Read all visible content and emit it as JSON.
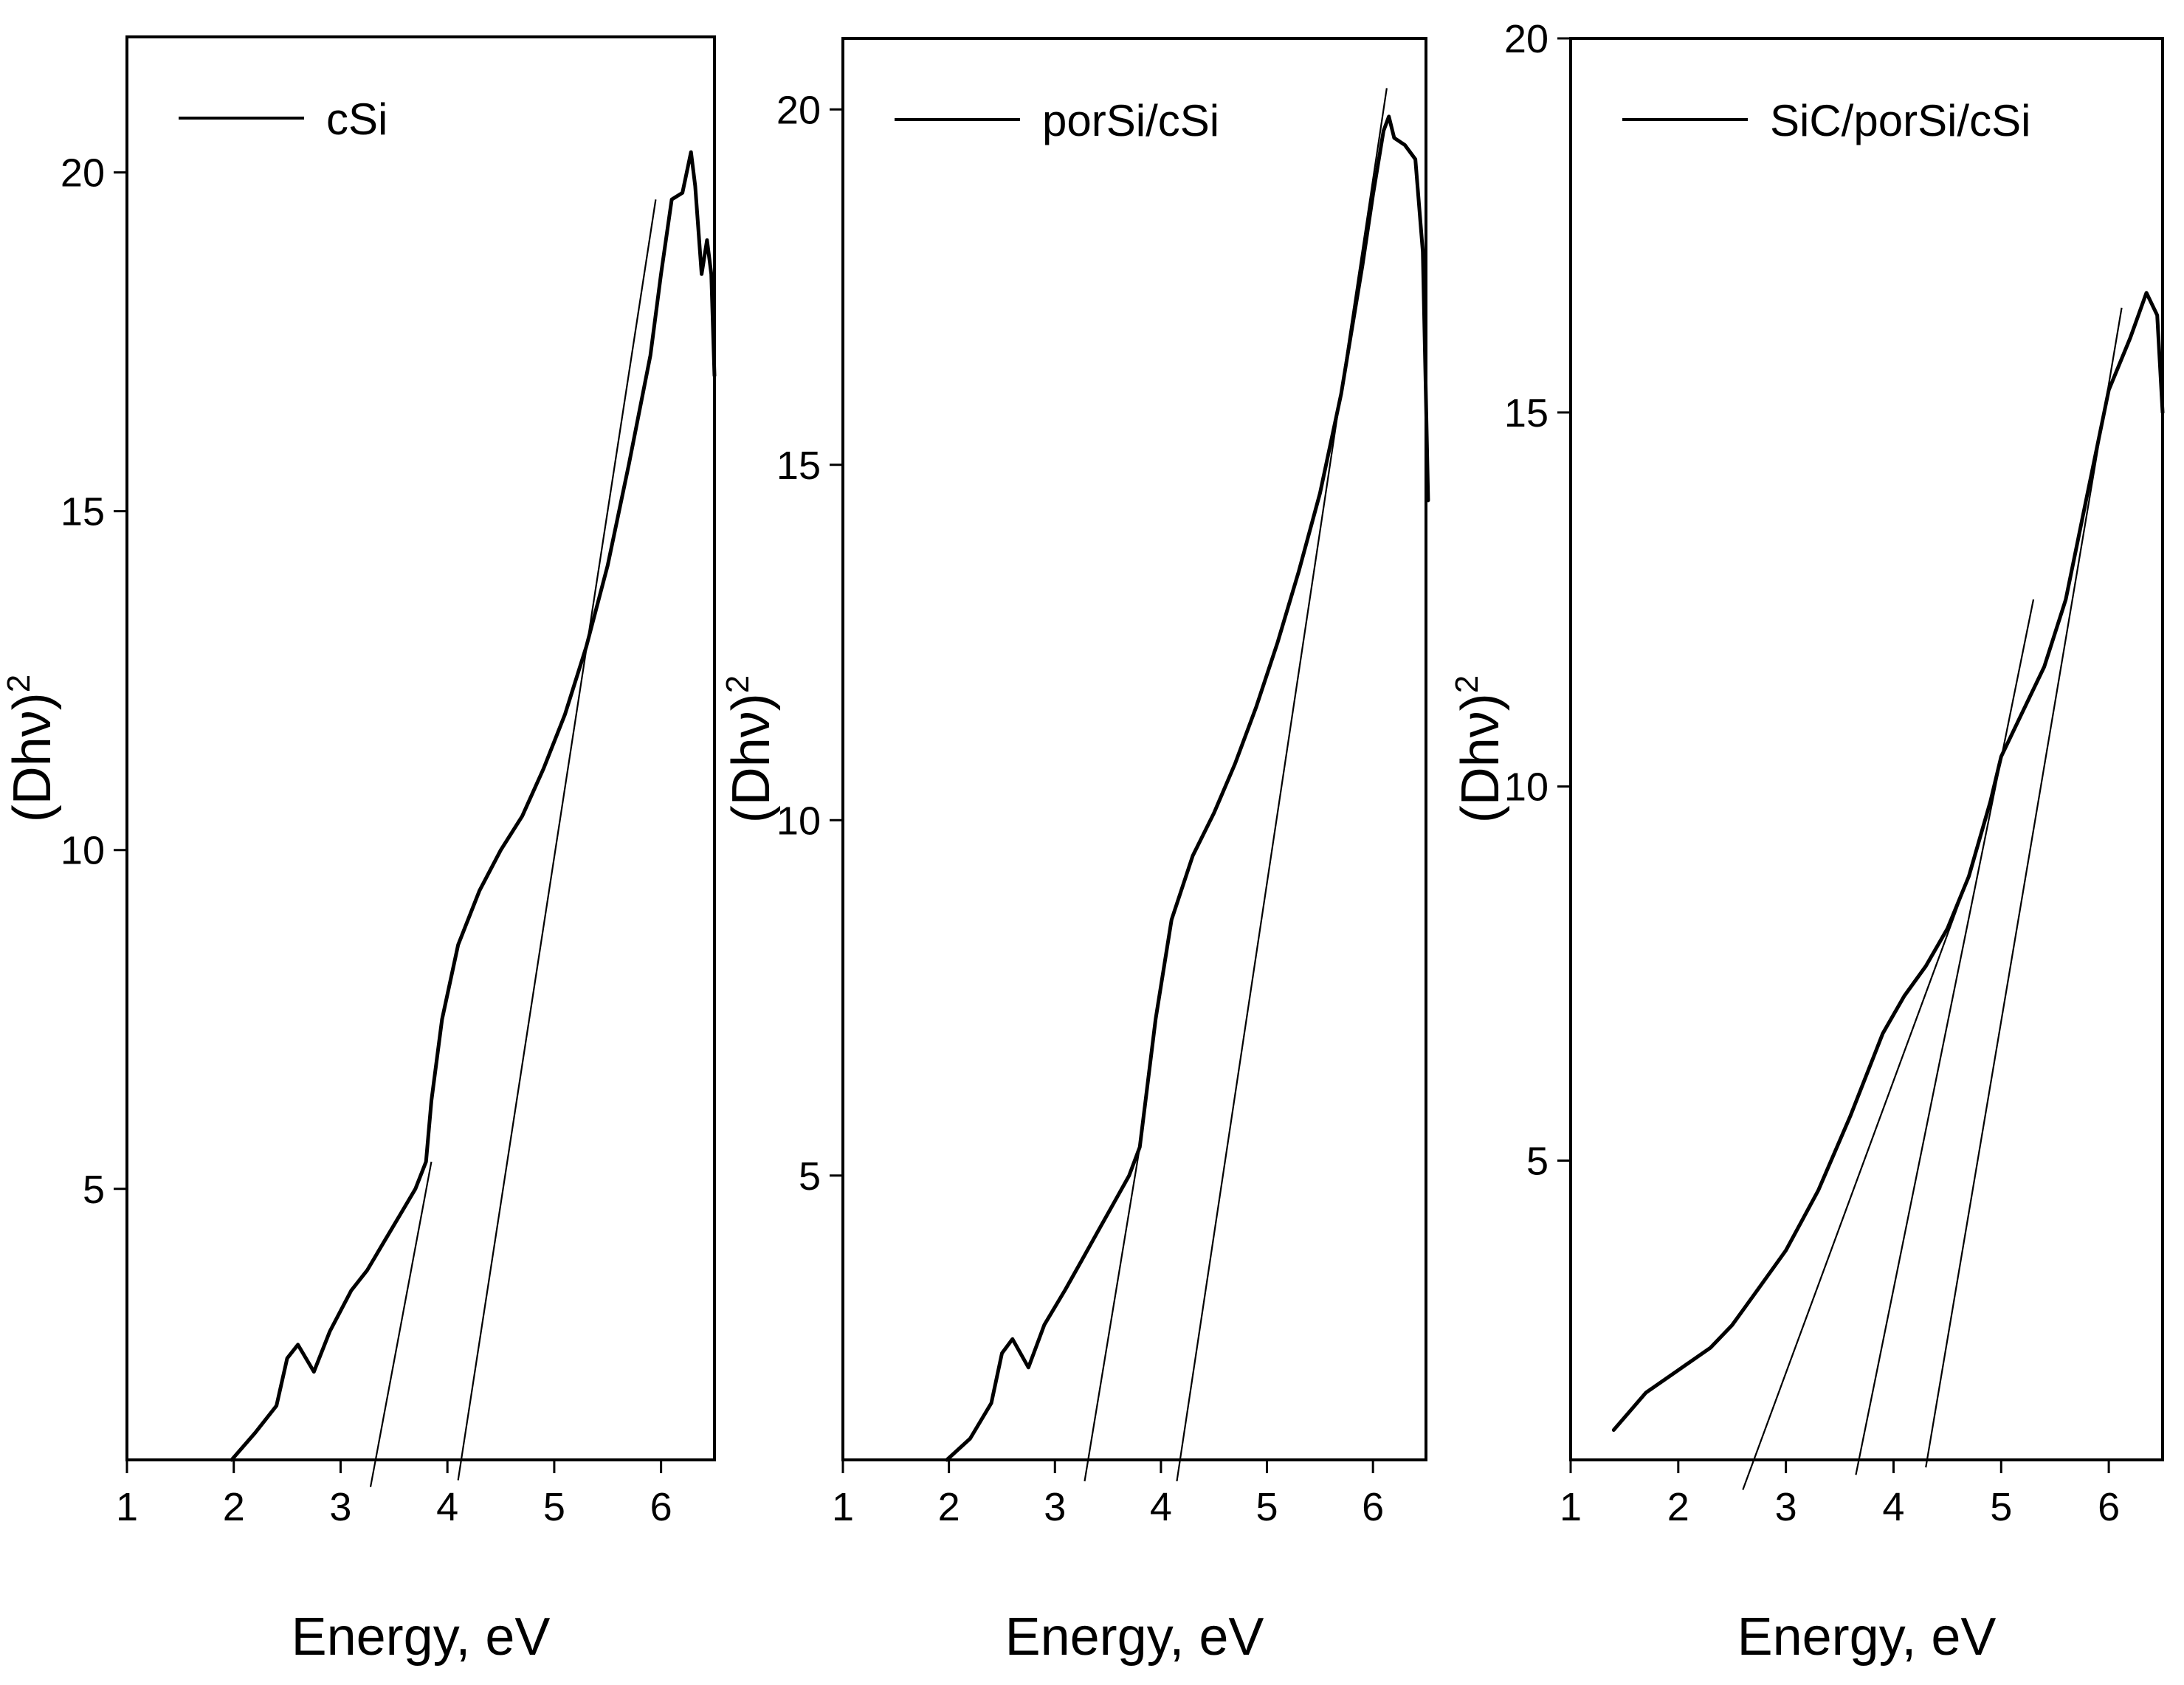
{
  "figure": {
    "colors": {
      "line": "#000000",
      "background": "#ffffff"
    }
  },
  "chart_data": [
    {
      "type": "line",
      "title": "",
      "xlabel": "Energy, eV",
      "ylabel": "(Dhν)",
      "ylabel_superscript": "2",
      "xlim": [
        1,
        6.5
      ],
      "ylim": [
        1,
        22
      ],
      "xticks": [
        "1",
        "2",
        "3",
        "4",
        "5",
        "6"
      ],
      "yticks": [
        "5",
        "10",
        "15",
        "20"
      ],
      "legend": {
        "position": "top-left"
      },
      "series": [
        {
          "name": "cSi",
          "x": [
            1.98,
            2.2,
            2.4,
            2.5,
            2.6,
            2.75,
            2.9,
            3.1,
            3.25,
            3.4,
            3.55,
            3.7,
            3.8,
            3.85,
            3.95,
            4.1,
            4.3,
            4.5,
            4.7,
            4.9,
            5.1,
            5.3,
            5.5,
            5.7,
            5.9,
            6.0,
            6.1,
            6.2,
            6.28,
            6.32,
            6.38,
            6.43,
            6.47,
            6.5
          ],
          "y": [
            1.0,
            1.4,
            1.8,
            2.5,
            2.7,
            2.3,
            2.9,
            3.5,
            3.8,
            4.2,
            4.6,
            5.0,
            5.4,
            6.3,
            7.5,
            8.6,
            9.4,
            10.0,
            10.5,
            11.2,
            12.0,
            13.0,
            14.2,
            15.7,
            17.3,
            18.5,
            19.6,
            19.7,
            20.3,
            19.8,
            18.5,
            19.0,
            18.5,
            17.0
          ]
        }
      ],
      "fit_lines": [
        {
          "x": [
            3.28,
            3.85
          ],
          "y": [
            0.6,
            5.4
          ]
        },
        {
          "x": [
            4.1,
            5.95
          ],
          "y": [
            0.7,
            19.6
          ]
        }
      ]
    },
    {
      "type": "line",
      "title": "",
      "xlabel": "Energy, eV",
      "ylabel": "(Dhν)",
      "ylabel_superscript": "2",
      "xlim": [
        1,
        6.5
      ],
      "ylim": [
        1,
        21
      ],
      "xticks": [
        "1",
        "2",
        "3",
        "4",
        "5",
        "6"
      ],
      "yticks": [
        "5",
        "10",
        "15",
        "20"
      ],
      "legend": {
        "position": "top-left"
      },
      "series": [
        {
          "name": "porSi/cSi",
          "x": [
            1.98,
            2.2,
            2.4,
            2.5,
            2.6,
            2.75,
            2.9,
            3.1,
            3.25,
            3.4,
            3.55,
            3.7,
            3.8,
            3.85,
            3.95,
            4.1,
            4.3,
            4.5,
            4.7,
            4.9,
            5.1,
            5.3,
            5.5,
            5.7,
            5.9,
            6.0,
            6.1,
            6.15,
            6.2,
            6.3,
            6.4,
            6.47,
            6.52
          ],
          "y": [
            1.0,
            1.3,
            1.8,
            2.5,
            2.7,
            2.3,
            2.9,
            3.4,
            3.8,
            4.2,
            4.6,
            5.0,
            5.4,
            6.0,
            7.2,
            8.6,
            9.5,
            10.1,
            10.8,
            11.6,
            12.5,
            13.5,
            14.6,
            16.0,
            17.8,
            18.8,
            19.7,
            19.9,
            19.6,
            19.5,
            19.3,
            18.0,
            14.5
          ]
        }
      ],
      "fit_lines": [
        {
          "x": [
            3.28,
            3.8
          ],
          "y": [
            0.7,
            5.4
          ]
        },
        {
          "x": [
            4.15,
            6.13
          ],
          "y": [
            0.7,
            20.3
          ]
        }
      ]
    },
    {
      "type": "line",
      "title": "",
      "xlabel": "Energy, eV",
      "ylabel": "(Dhν)",
      "ylabel_superscript": "2",
      "xlim": [
        1,
        6.5
      ],
      "ylim": [
        1,
        20
      ],
      "xticks": [
        "1",
        "2",
        "3",
        "4",
        "5",
        "6"
      ],
      "yticks": [
        "5",
        "10",
        "15",
        "20"
      ],
      "legend": {
        "position": "top-left"
      },
      "series": [
        {
          "name": "SiC/porSi/cSi",
          "x": [
            1.4,
            1.7,
            2.0,
            2.3,
            2.5,
            2.6,
            2.75,
            3.0,
            3.3,
            3.6,
            3.9,
            4.1,
            4.3,
            4.5,
            4.7,
            4.9,
            5.0,
            5.2,
            5.4,
            5.6,
            5.8,
            6.0,
            6.2,
            6.35,
            6.45,
            6.5
          ],
          "y": [
            1.4,
            1.9,
            2.2,
            2.5,
            2.8,
            3.0,
            3.3,
            3.8,
            4.6,
            5.6,
            6.7,
            7.2,
            7.6,
            8.1,
            8.8,
            9.8,
            10.4,
            11.0,
            11.6,
            12.5,
            13.9,
            15.3,
            16.0,
            16.6,
            16.3,
            15.0
          ]
        }
      ],
      "fit_lines": [
        {
          "x": [
            2.6,
            4.7
          ],
          "y": [
            0.6,
            8.8
          ]
        },
        {
          "x": [
            3.65,
            5.3
          ],
          "y": [
            0.8,
            12.5
          ]
        },
        {
          "x": [
            4.3,
            6.12
          ],
          "y": [
            0.9,
            16.4
          ]
        }
      ]
    }
  ]
}
